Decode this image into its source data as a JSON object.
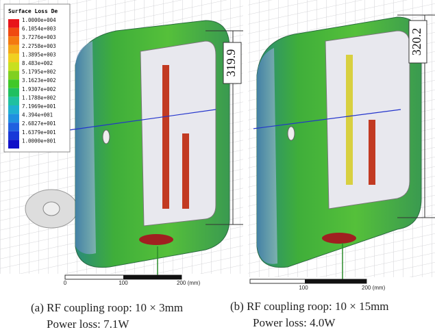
{
  "legend": {
    "title": "Surface Loss De",
    "labels": [
      "1.0000e+004",
      "6.1054e+003",
      "3.7276e+003",
      "2.2758e+003",
      "1.3895e+003",
      "8.483e+002",
      "5.1795e+002",
      "3.1623e+002",
      "1.9307e+002",
      "1.1788e+002",
      "7.1969e+001",
      "4.394e+001",
      "2.6827e+001",
      "1.6379e+001",
      "1.0000e+001"
    ]
  },
  "panels": [
    {
      "dimension": "319.9",
      "scale": [
        "0",
        "100",
        "200 (mm)"
      ],
      "caption": [
        "(a) RF coupling roop:  10 × 3mm",
        "Power loss: 7.1W"
      ]
    },
    {
      "dimension": "320.2",
      "scale": [
        "100",
        "200 (mm)"
      ],
      "caption": [
        "(b) RF coupling roop:  10 × 15mm",
        "Power loss: 4.0W"
      ]
    }
  ]
}
